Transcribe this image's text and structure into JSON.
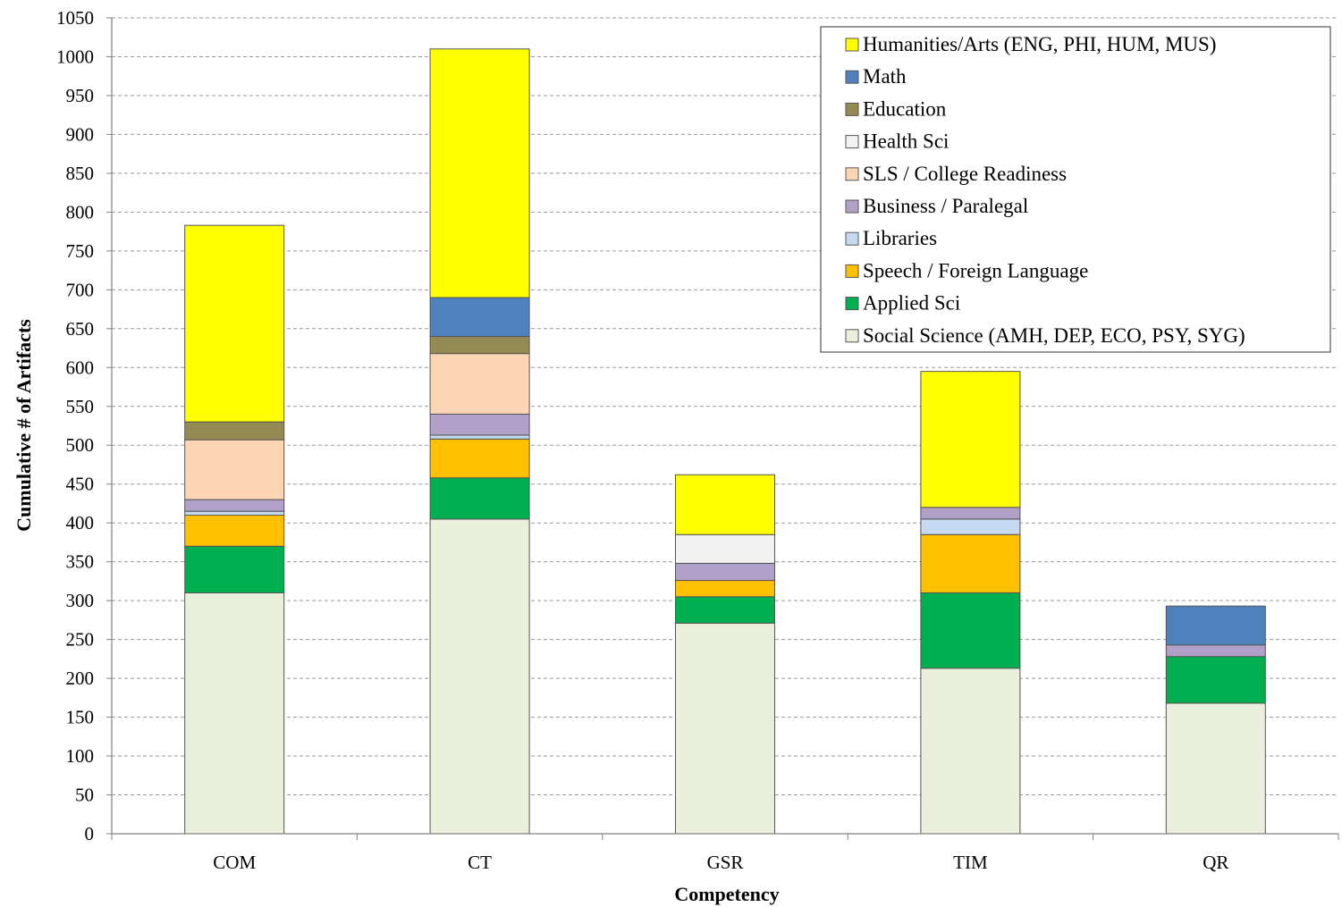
{
  "chart_data": {
    "type": "bar",
    "stacked": true,
    "title": "",
    "xlabel": "Competency",
    "ylabel": "Cumulative # of Artifacts",
    "ylim": [
      0,
      1050
    ],
    "y_tick_step": 50,
    "grid": "horizontal dashed",
    "legend_position": "top-right",
    "categories": [
      "COM",
      "CT",
      "GSR",
      "TIM",
      "QR"
    ],
    "series": [
      {
        "name": "Social Science (AMH, DEP, ECO, PSY, SYG)",
        "color": "#ebf0dd",
        "values": [
          310,
          405,
          271,
          213,
          168
        ]
      },
      {
        "name": "Applied Sci",
        "color": "#00b050",
        "values": [
          60,
          53,
          34,
          97,
          60
        ]
      },
      {
        "name": "Speech / Foreign Language",
        "color": "#ffc000",
        "values": [
          40,
          50,
          21,
          75,
          0
        ]
      },
      {
        "name": "Libraries",
        "color": "#c5d9f1",
        "values": [
          5,
          5,
          0,
          20,
          0
        ]
      },
      {
        "name": "Business / Paralegal",
        "color": "#b1a0c7",
        "values": [
          15,
          27,
          22,
          15,
          15
        ]
      },
      {
        "name": "SLS / College Readiness",
        "color": "#fcd5b4",
        "values": [
          77,
          78,
          0,
          0,
          0
        ]
      },
      {
        "name": "Health Sci",
        "color": "#f2f2f2",
        "values": [
          0,
          0,
          37,
          0,
          0
        ]
      },
      {
        "name": "Education",
        "color": "#948a54",
        "values": [
          23,
          22,
          0,
          0,
          0
        ]
      },
      {
        "name": "Math",
        "color": "#4f81bd",
        "values": [
          0,
          50,
          0,
          0,
          50
        ]
      },
      {
        "name": "Humanities/Arts (ENG, PHI, HUM, MUS)",
        "color": "#ffff00",
        "values": [
          253,
          320,
          77,
          175,
          0
        ]
      }
    ]
  }
}
